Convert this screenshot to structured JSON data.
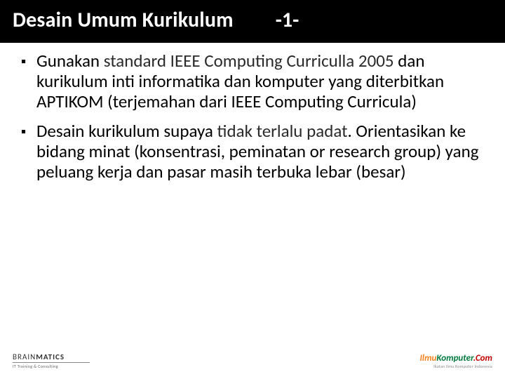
{
  "title": {
    "main": "Desain Umum Kurikulum",
    "num": "-1-"
  },
  "bullets": [
    {
      "pre": "Gunakan ",
      "emph": "standard IEEE Computing Curriculla 2005",
      "post": " dan kurikulum inti informatika dan komputer yang diterbitkan APTIKOM (terjemahan dari IEEE Computing Curricula)"
    },
    {
      "pre": "Desain kurikulum supaya ",
      "emph": "tidak terlalu padat",
      "post": ". Orientasikan ke bidang minat (konsentrasi, peminatan or research group) yang peluang kerja dan pasar masih terbuka lebar (besar)"
    }
  ],
  "footer": {
    "left_brand_light": "BRAIN",
    "left_brand_bold": "MATICS",
    "left_tag": "IT Training & Consulting",
    "right_ilmu": "Ilmu",
    "right_komp": "Komputer",
    "right_com": ".Com",
    "right_tag": "Ikatan Ilmu Komputer Indonesia"
  },
  "colors": {
    "title_bg": "#000000",
    "title_fg": "#ffffff",
    "body_fg": "#000000",
    "footer_orange": "#f58220",
    "footer_green": "#007a3d",
    "footer_red": "#c00000"
  }
}
